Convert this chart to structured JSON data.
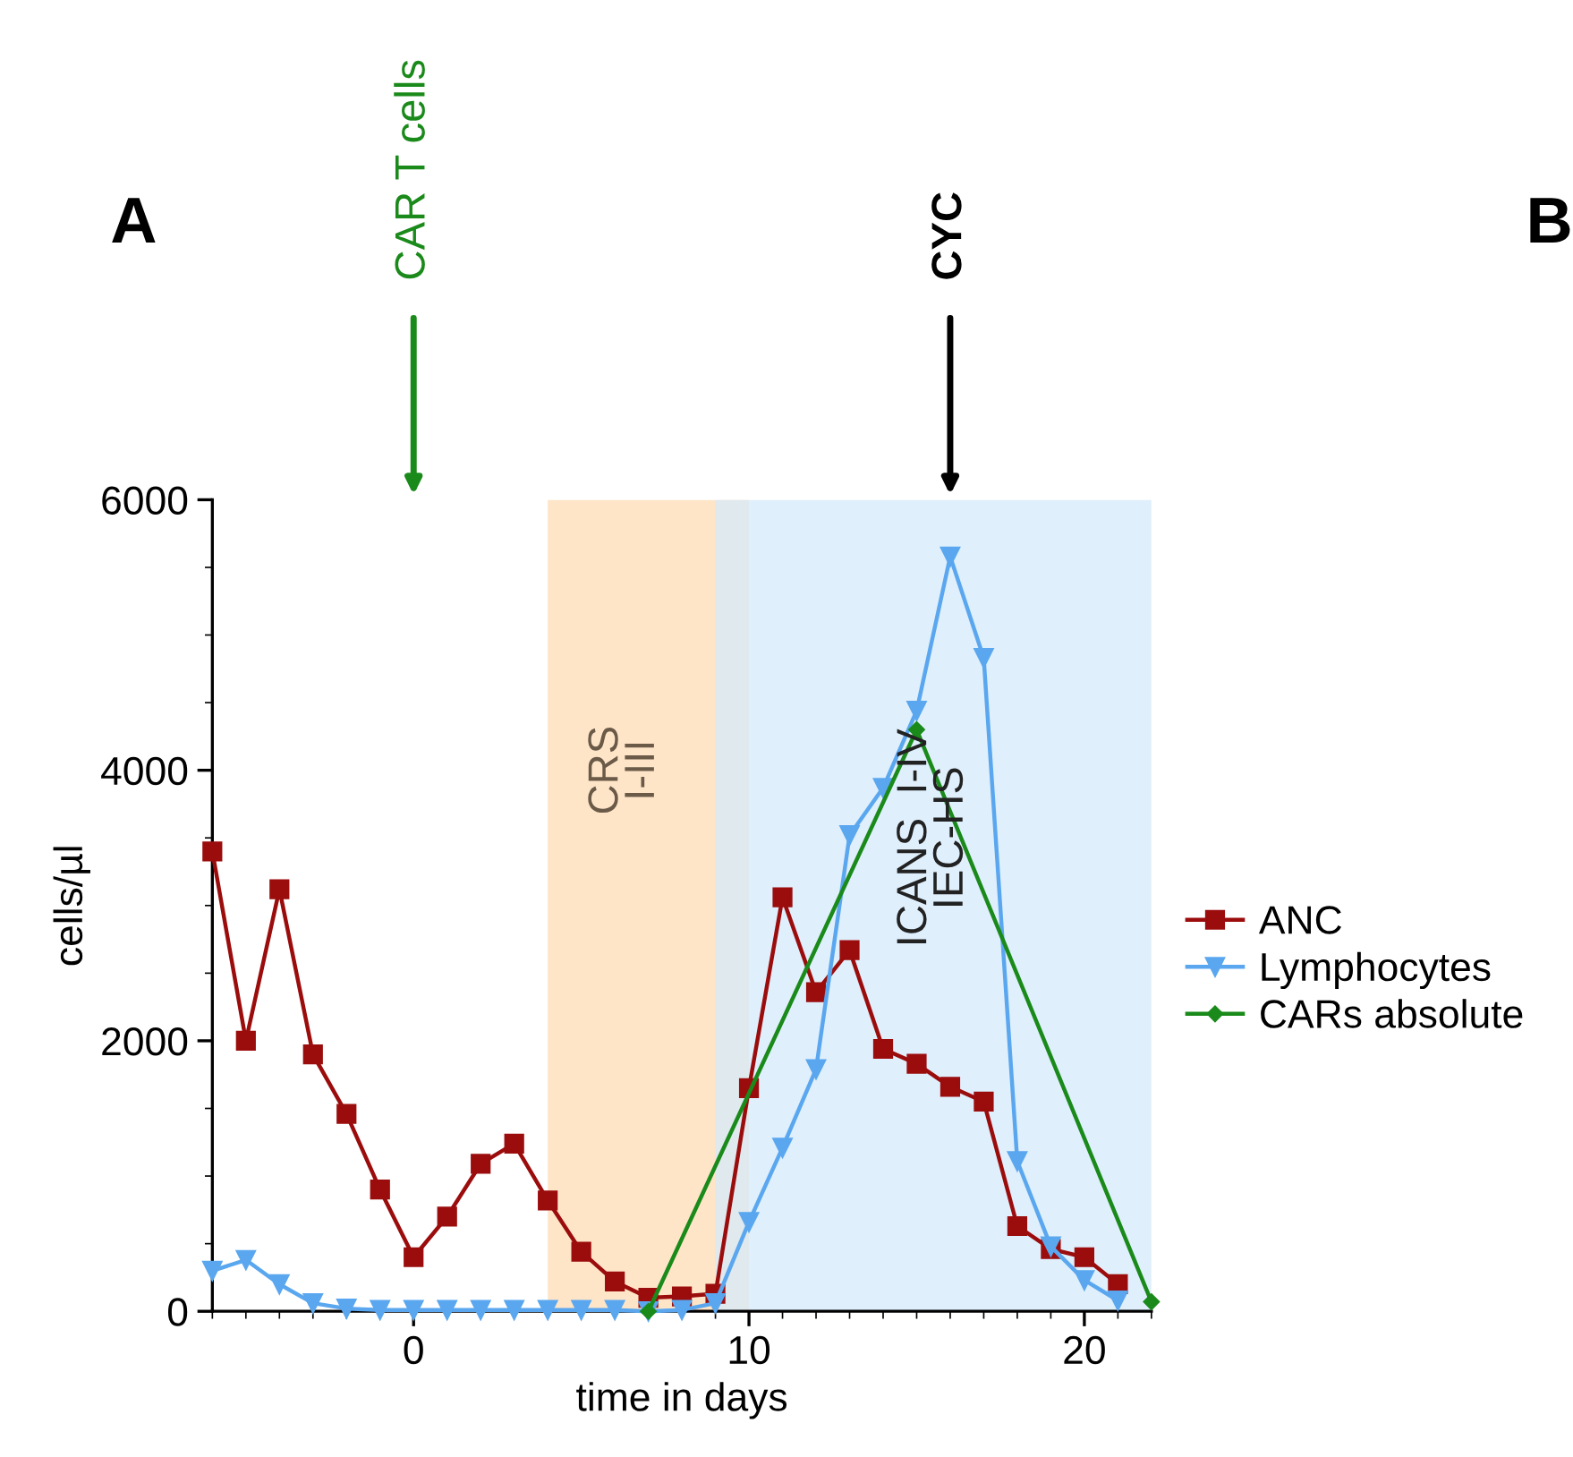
{
  "chart_data": {
    "type": "line",
    "xlabel": "time in days",
    "ylabel": "cells/µl",
    "xlim": [
      -6,
      22
    ],
    "ylim": [
      0,
      6000
    ],
    "xticks": [
      0,
      10,
      20
    ],
    "yticks": [
      0,
      2000,
      4000,
      6000
    ],
    "series": [
      {
        "name": "ANC",
        "color": "#9b0d0d",
        "marker": "square",
        "x": [
          -6,
          -5,
          -4,
          -3,
          -2,
          -1,
          0,
          1,
          2,
          3,
          4,
          5,
          6,
          7,
          8,
          9,
          10,
          11,
          12,
          13,
          14,
          15,
          16,
          17,
          18,
          19,
          20,
          21
        ],
        "values": [
          3400,
          2000,
          3120,
          1900,
          1460,
          900,
          400,
          700,
          1090,
          1240,
          820,
          440,
          220,
          100,
          110,
          130,
          1650,
          3060,
          2360,
          2670,
          1940,
          1830,
          1660,
          1550,
          630,
          460,
          400,
          200
        ]
      },
      {
        "name": "Lymphocytes",
        "color": "#5aa7ef",
        "marker": "triangle",
        "x": [
          -6,
          -5,
          -4,
          -3,
          -2,
          -1,
          0,
          1,
          2,
          3,
          4,
          5,
          6,
          7,
          8,
          9,
          10,
          11,
          12,
          13,
          14,
          15,
          16,
          17,
          18,
          19,
          20,
          21
        ],
        "values": [
          300,
          380,
          200,
          60,
          20,
          10,
          10,
          10,
          10,
          10,
          10,
          10,
          10,
          0,
          10,
          60,
          660,
          1210,
          1790,
          3520,
          3870,
          4440,
          5580,
          4830,
          1110,
          480,
          230,
          80
        ]
      },
      {
        "name": "CARs absolute",
        "color": "#1a8a1a",
        "marker": "diamond",
        "x": [
          7,
          15,
          22
        ],
        "values": [
          0,
          4300,
          70
        ]
      }
    ],
    "bands": [
      {
        "axis": "x",
        "from": 4,
        "to": 10,
        "label": "CRS\nI-III",
        "color": "#fddcb5"
      },
      {
        "axis": "x",
        "from": 9,
        "to": 22,
        "label": "ICANS  I-IV\nIEC-HS",
        "color": "#d4eafb"
      }
    ],
    "annotations": [
      "CAR T cells",
      "CYC",
      "A",
      "B"
    ],
    "legend": "right",
    "grid": false
  }
}
